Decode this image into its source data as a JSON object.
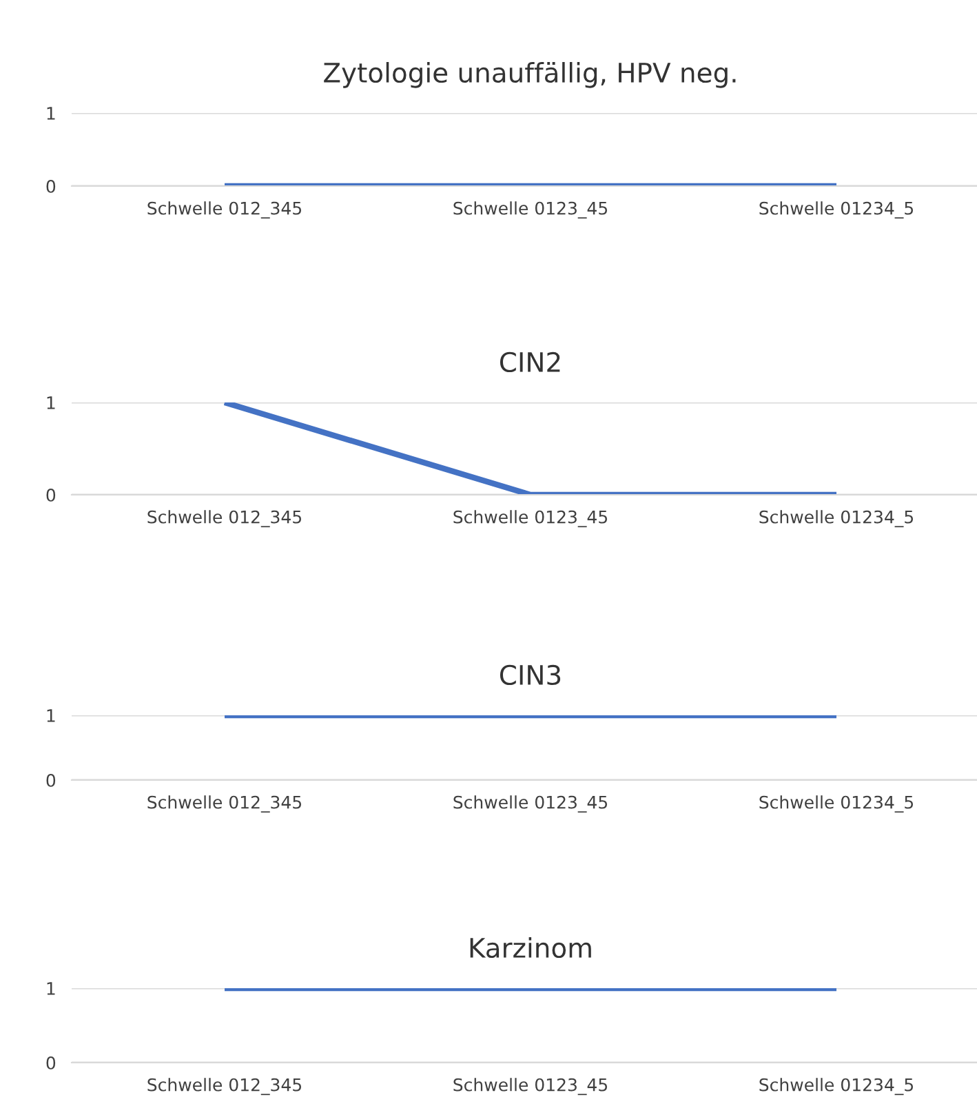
{
  "chart_data": [
    {
      "type": "line",
      "title": "Zytologie unauffällig, HPV neg.",
      "categories": [
        "Schwelle 012_345",
        "Schwelle 0123_45",
        "Schwelle 01234_5"
      ],
      "series": [
        {
          "color": "#4472c4",
          "values": [
            0,
            0,
            0
          ]
        }
      ],
      "ylim": [
        0,
        1
      ],
      "yticks": [
        0,
        1
      ],
      "grid": "y",
      "legend": false
    },
    {
      "type": "line",
      "title": "CIN2",
      "categories": [
        "Schwelle 012_345",
        "Schwelle 0123_45",
        "Schwelle 01234_5"
      ],
      "series": [
        {
          "color": "#4472c4",
          "values": [
            1,
            0,
            0
          ]
        }
      ],
      "ylim": [
        0,
        1
      ],
      "yticks": [
        0,
        1
      ],
      "grid": "y",
      "legend": false
    },
    {
      "type": "line",
      "title": "CIN3",
      "categories": [
        "Schwelle 012_345",
        "Schwelle 0123_45",
        "Schwelle 01234_5"
      ],
      "series": [
        {
          "color": "#4472c4",
          "values": [
            1,
            1,
            1
          ]
        }
      ],
      "ylim": [
        0,
        1
      ],
      "yticks": [
        0,
        1
      ],
      "grid": "y",
      "legend": false
    },
    {
      "type": "line",
      "title": "Karzinom",
      "categories": [
        "Schwelle 012_345",
        "Schwelle 0123_45",
        "Schwelle 01234_5"
      ],
      "series": [
        {
          "color": "#4472c4",
          "values": [
            1,
            1,
            1
          ]
        }
      ],
      "ylim": [
        0,
        1
      ],
      "yticks": [
        0,
        1
      ],
      "grid": "y",
      "legend": false
    }
  ]
}
